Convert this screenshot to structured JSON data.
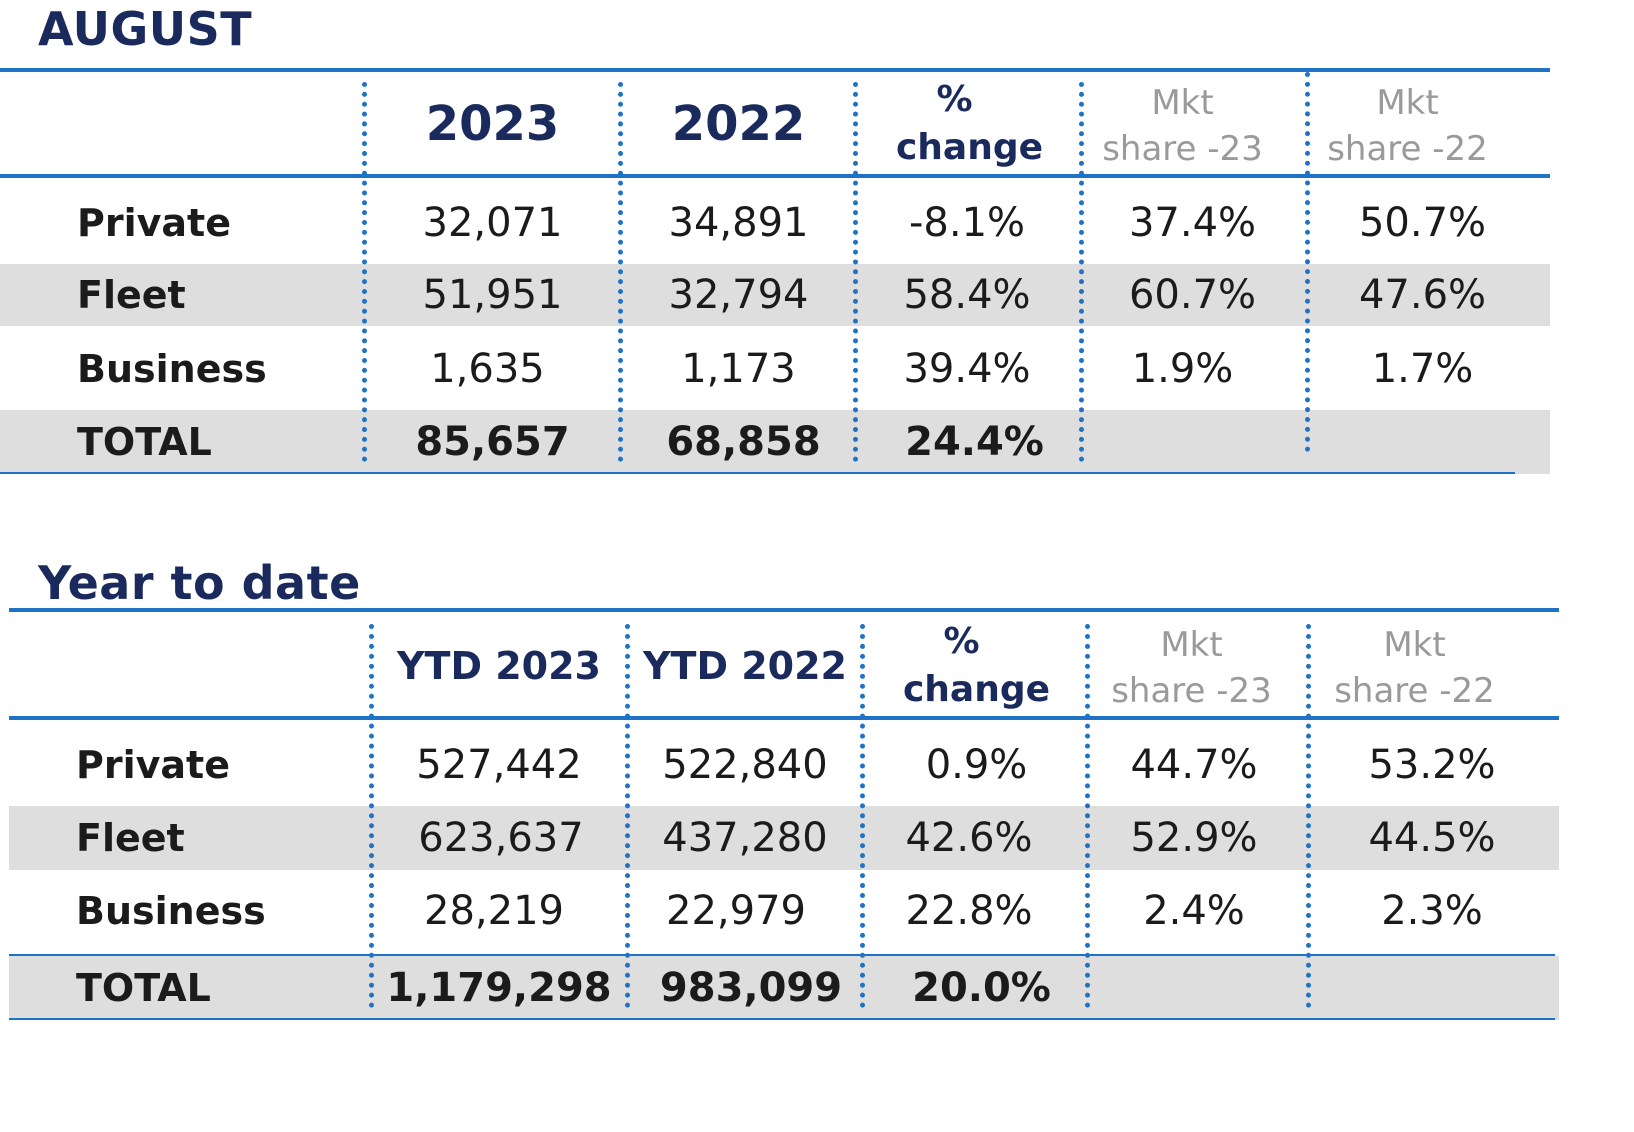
{
  "august": {
    "title": "AUGUST",
    "headers": {
      "y2023": "2023",
      "y2022": "2022",
      "pct_line1": "%",
      "pct_line2": "change",
      "mkt23_line1": "Mkt",
      "mkt23_line2": "share -23",
      "mkt22_line1": "Mkt",
      "mkt22_line2": "share -22"
    },
    "rows": [
      {
        "label": "Private",
        "v2023": "32,071",
        "v2022": "34,891",
        "pct": "-8.1%",
        "mkt23": "37.4%",
        "mkt22": "50.7%"
      },
      {
        "label": "Fleet",
        "v2023": "51,951",
        "v2022": "32,794",
        "pct": "58.4%",
        "mkt23": "60.7%",
        "mkt22": "47.6%"
      },
      {
        "label": "Business",
        "v2023": "1,635",
        "v2022": "1,173",
        "pct": "39.4%",
        "mkt23": "1.9%",
        "mkt22": "1.7%"
      }
    ],
    "total": {
      "label": "TOTAL",
      "v2023": "85,657",
      "v2022": "68,858",
      "pct": "24.4%"
    }
  },
  "ytd": {
    "title": "Year to date",
    "headers": {
      "y2023": "YTD 2023",
      "y2022": "YTD 2022",
      "pct_line1": "%",
      "pct_line2": "change",
      "mkt23_line1": "Mkt",
      "mkt23_line2": "share -23",
      "mkt22_line1": "Mkt",
      "mkt22_line2": "share -22"
    },
    "rows": [
      {
        "label": "Private",
        "v2023": "527,442",
        "v2022": "522,840",
        "pct": "0.9%",
        "mkt23": "44.7%",
        "mkt22": "53.2%"
      },
      {
        "label": "Fleet",
        "v2023": "623,637",
        "v2022": "437,280",
        "pct": "42.6%",
        "mkt23": "52.9%",
        "mkt22": "44.5%"
      },
      {
        "label": "Business",
        "v2023": "28,219",
        "v2022": "22,979",
        "pct": "22.8%",
        "mkt23": "2.4%",
        "mkt22": "2.3%"
      }
    ],
    "total": {
      "label": "TOTAL",
      "v2023": "1,179,298",
      "v2022": "983,099",
      "pct": "20.0%"
    }
  },
  "colors": {
    "accent_blue": "#1e73c6",
    "title_navy": "#1b2a5c",
    "band_gray": "#dedede",
    "muted_gray": "#9a9a9a"
  }
}
